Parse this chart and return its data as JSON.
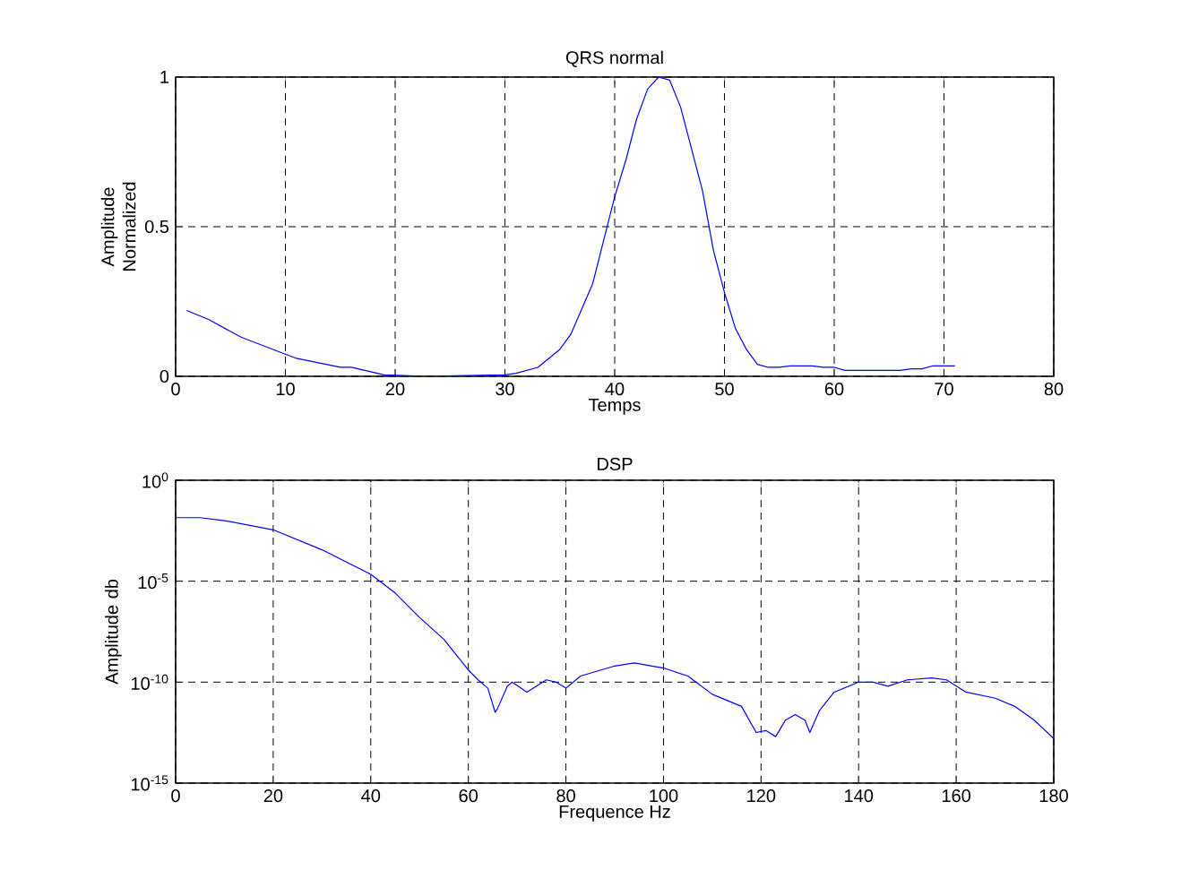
{
  "chart_data": [
    {
      "type": "line",
      "title": "QRS normal",
      "xlabel": "Temps",
      "ylabel": "Amplitude Normalized",
      "xlim": [
        0,
        80
      ],
      "ylim": [
        0,
        1
      ],
      "xticks": [
        0,
        10,
        20,
        30,
        40,
        50,
        60,
        70,
        80
      ],
      "yticks": [
        0,
        0.5,
        1
      ],
      "grid": true,
      "series": [
        {
          "color": "#0000ff",
          "line_style": "solid",
          "x": [
            1,
            3,
            6,
            11,
            15,
            16,
            19,
            23,
            30,
            31,
            33,
            35,
            36,
            38,
            40,
            41,
            42,
            43,
            44,
            45,
            46,
            48,
            49,
            50,
            51,
            52,
            53,
            54,
            55,
            56,
            58,
            59,
            60,
            61,
            66,
            67,
            68,
            69,
            71
          ],
          "values": [
            0.22,
            0.19,
            0.13,
            0.06,
            0.03,
            0.03,
            0.005,
            0.0,
            0.005,
            0.01,
            0.03,
            0.09,
            0.14,
            0.31,
            0.6,
            0.72,
            0.86,
            0.96,
            1.0,
            0.99,
            0.9,
            0.62,
            0.42,
            0.28,
            0.16,
            0.09,
            0.04,
            0.03,
            0.03,
            0.035,
            0.035,
            0.03,
            0.03,
            0.02,
            0.02,
            0.025,
            0.025,
            0.035,
            0.035
          ]
        }
      ]
    },
    {
      "type": "line",
      "title": "DSP",
      "xlabel": "Frequence Hz",
      "ylabel": "Amplitude db",
      "log": "y",
      "xlim": [
        0,
        180
      ],
      "ylim": [
        1e-15,
        1
      ],
      "xticks": [
        0,
        20,
        40,
        60,
        80,
        100,
        120,
        140,
        160,
        180
      ],
      "yticks": [
        {
          "value": 1e-15,
          "label": "10$^{-15}$"
        },
        {
          "value": 1e-10,
          "label": "10$^{-10}$"
        },
        {
          "value": 1e-05,
          "label": "10$^{-5}$"
        },
        {
          "value": 1,
          "label": "10$^{0}$"
        }
      ],
      "grid": true,
      "series": [
        {
          "color": "#0000ff",
          "line_style": "solid",
          "x": [
            0,
            5,
            10,
            20,
            30,
            40,
            45,
            50,
            55,
            58,
            60,
            62,
            64,
            65.5,
            66,
            68,
            69,
            72,
            76,
            78,
            80,
            83,
            90,
            94,
            100,
            105,
            110,
            116,
            119,
            121,
            123,
            125,
            127,
            129,
            130,
            132,
            135,
            140,
            143,
            146,
            150,
            155,
            158,
            162,
            168,
            172,
            176,
            180
          ],
          "values": [
            0.014,
            0.014,
            0.01,
            0.0035,
            0.00036,
            2.2e-05,
            2.6e-06,
            1.6e-07,
            1.3e-08,
            1.6e-09,
            4e-10,
            1.3e-10,
            5e-11,
            3.2e-12,
            5e-12,
            6.3e-11,
            1e-10,
            3.2e-11,
            1.3e-10,
            1e-10,
            5e-11,
            2e-10,
            6.3e-10,
            9e-10,
            5e-10,
            2e-10,
            2.5e-11,
            6.3e-12,
            3.2e-13,
            4e-13,
            2e-13,
            1.3e-12,
            2.5e-12,
            1.3e-12,
            3.2e-13,
            4e-12,
            3.2e-11,
            1e-10,
            1e-10,
            6.3e-11,
            1.3e-10,
            1.6e-10,
            1.3e-10,
            3.2e-11,
            1.6e-11,
            6.3e-12,
            1.3e-12,
            1.6e-13
          ]
        }
      ]
    }
  ]
}
